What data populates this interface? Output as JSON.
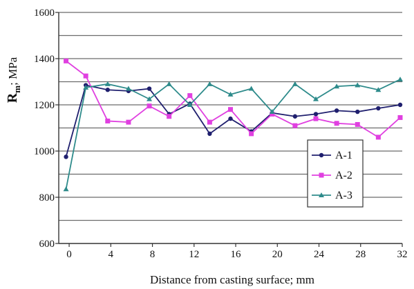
{
  "chart_data": {
    "type": "line",
    "title": "",
    "xlabel": "Distance from casting surface; mm",
    "ylabel": {
      "main": "R",
      "sub": "m",
      "rest": "; MPa"
    },
    "xlim": [
      -1,
      32
    ],
    "ylim": [
      600,
      1600
    ],
    "x_ticks": [
      0,
      4,
      8,
      12,
      16,
      20,
      24,
      28,
      32
    ],
    "y_ticks": [
      600,
      800,
      1000,
      1200,
      1400,
      1600
    ],
    "gridlines_y": [
      700,
      800,
      900,
      1000,
      1100,
      1200,
      1300,
      1400,
      1500,
      1600
    ],
    "grid": true,
    "legend_position": "lower-right",
    "series": [
      {
        "name": "A-1",
        "color": "#1f1f6e",
        "marker": "circle",
        "x": [
          -0.3,
          1.6,
          3.7,
          5.7,
          7.7,
          9.6,
          11.6,
          13.5,
          15.5,
          17.5,
          19.5,
          21.7,
          23.7,
          25.7,
          27.7,
          29.7,
          31.8
        ],
        "y": [
          975,
          1285,
          1265,
          1260,
          1270,
          1160,
          1205,
          1075,
          1140,
          1085,
          1165,
          1150,
          1160,
          1175,
          1170,
          1185,
          1200
        ]
      },
      {
        "name": "A-2",
        "color": "#e040e0",
        "marker": "square",
        "x": [
          -0.3,
          1.6,
          3.7,
          5.7,
          7.7,
          9.6,
          11.6,
          13.5,
          15.5,
          17.5,
          19.5,
          21.7,
          23.7,
          25.7,
          27.7,
          29.7,
          31.8
        ],
        "y": [
          1390,
          1325,
          1130,
          1125,
          1195,
          1150,
          1240,
          1125,
          1180,
          1075,
          1160,
          1110,
          1140,
          1120,
          1115,
          1060,
          1145
        ]
      },
      {
        "name": "A-3",
        "color": "#2e8b8b",
        "marker": "triangle",
        "x": [
          -0.3,
          1.6,
          3.7,
          5.7,
          7.7,
          9.6,
          11.6,
          13.5,
          15.5,
          17.5,
          19.5,
          21.7,
          23.7,
          25.7,
          27.7,
          29.7,
          31.8
        ],
        "y": [
          835,
          1275,
          1290,
          1270,
          1225,
          1290,
          1200,
          1290,
          1245,
          1270,
          1170,
          1290,
          1225,
          1280,
          1285,
          1265,
          1310
        ]
      }
    ]
  }
}
